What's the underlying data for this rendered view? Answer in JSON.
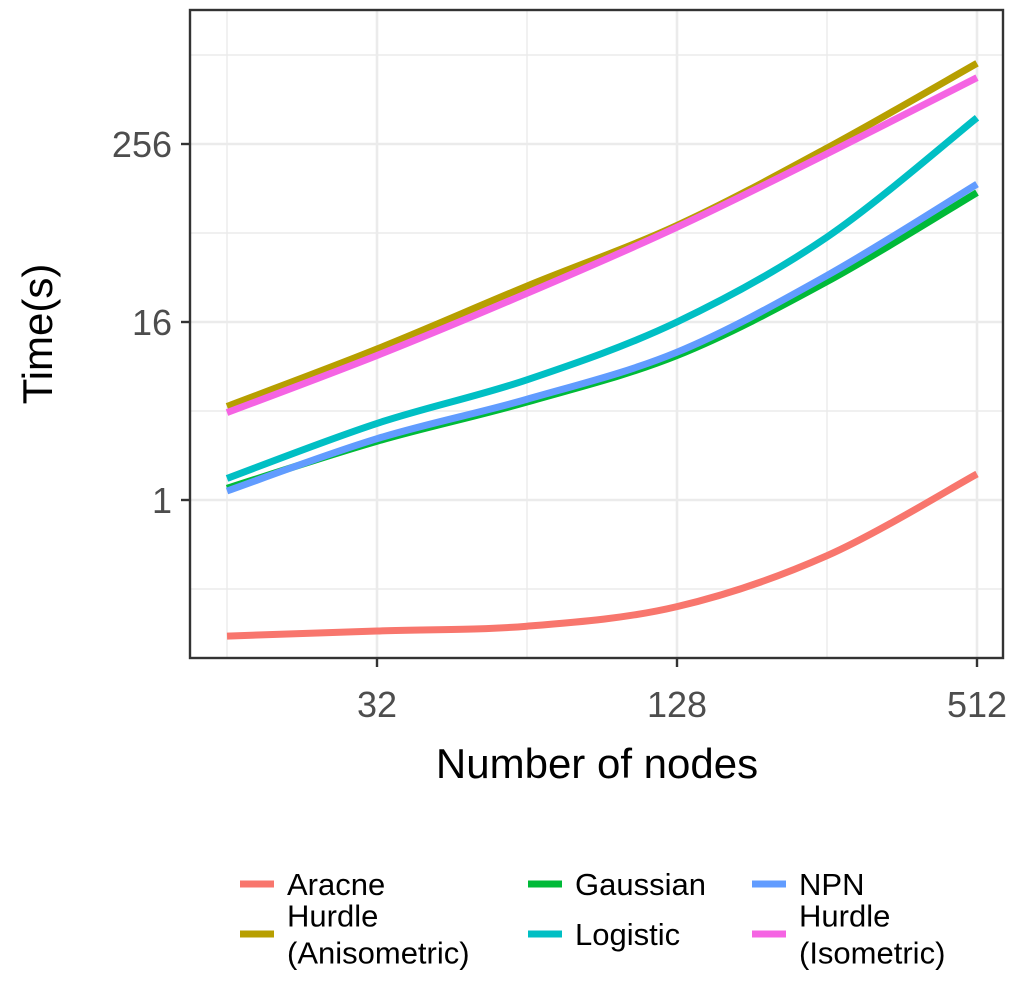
{
  "chart_data": {
    "type": "line",
    "xlabel": "Number of nodes",
    "ylabel": "Time(s)",
    "x_scale": "log2",
    "y_scale": "log2",
    "x_ticks": [
      32,
      128,
      512
    ],
    "x_tick_labels": [
      "32",
      "128",
      "512"
    ],
    "y_ticks": [
      1,
      16,
      256
    ],
    "y_tick_labels": [
      "1",
      "16",
      "256"
    ],
    "xlim": [
      16,
      512
    ],
    "ylim": [
      0.09,
      1200
    ],
    "grid": true,
    "legend_position": "bottom",
    "series": [
      {
        "name": "Aracne",
        "color": "#F8766D",
        "x": [
          16,
          32,
          64,
          128,
          256,
          512
        ],
        "y": [
          0.12,
          0.13,
          0.14,
          0.19,
          0.42,
          1.5
        ]
      },
      {
        "name": "Hurdle\n(Anisometric)",
        "color": "#B79F00",
        "x": [
          16,
          32,
          64,
          128,
          256,
          512
        ],
        "y": [
          4.3,
          10.5,
          28,
          72,
          240,
          900
        ]
      },
      {
        "name": "Gaussian",
        "color": "#00BA38",
        "x": [
          16,
          32,
          64,
          128,
          256,
          512
        ],
        "y": [
          1.2,
          2.5,
          4.6,
          9.5,
          30,
          120
        ]
      },
      {
        "name": "Logistic",
        "color": "#00BFC4",
        "x": [
          16,
          32,
          64,
          128,
          256,
          512
        ],
        "y": [
          1.4,
          3.3,
          6.5,
          16,
          60,
          385
        ]
      },
      {
        "name": "NPN",
        "color": "#619CFF",
        "x": [
          16,
          32,
          64,
          128,
          256,
          512
        ],
        "y": [
          1.15,
          2.6,
          4.8,
          10,
          33,
          137
        ]
      },
      {
        "name": "Hurdle\n(Isometric)",
        "color": "#F564E3",
        "x": [
          16,
          32,
          64,
          128,
          256,
          512
        ],
        "y": [
          3.9,
          9.5,
          25,
          70,
          220,
          720
        ]
      }
    ]
  }
}
